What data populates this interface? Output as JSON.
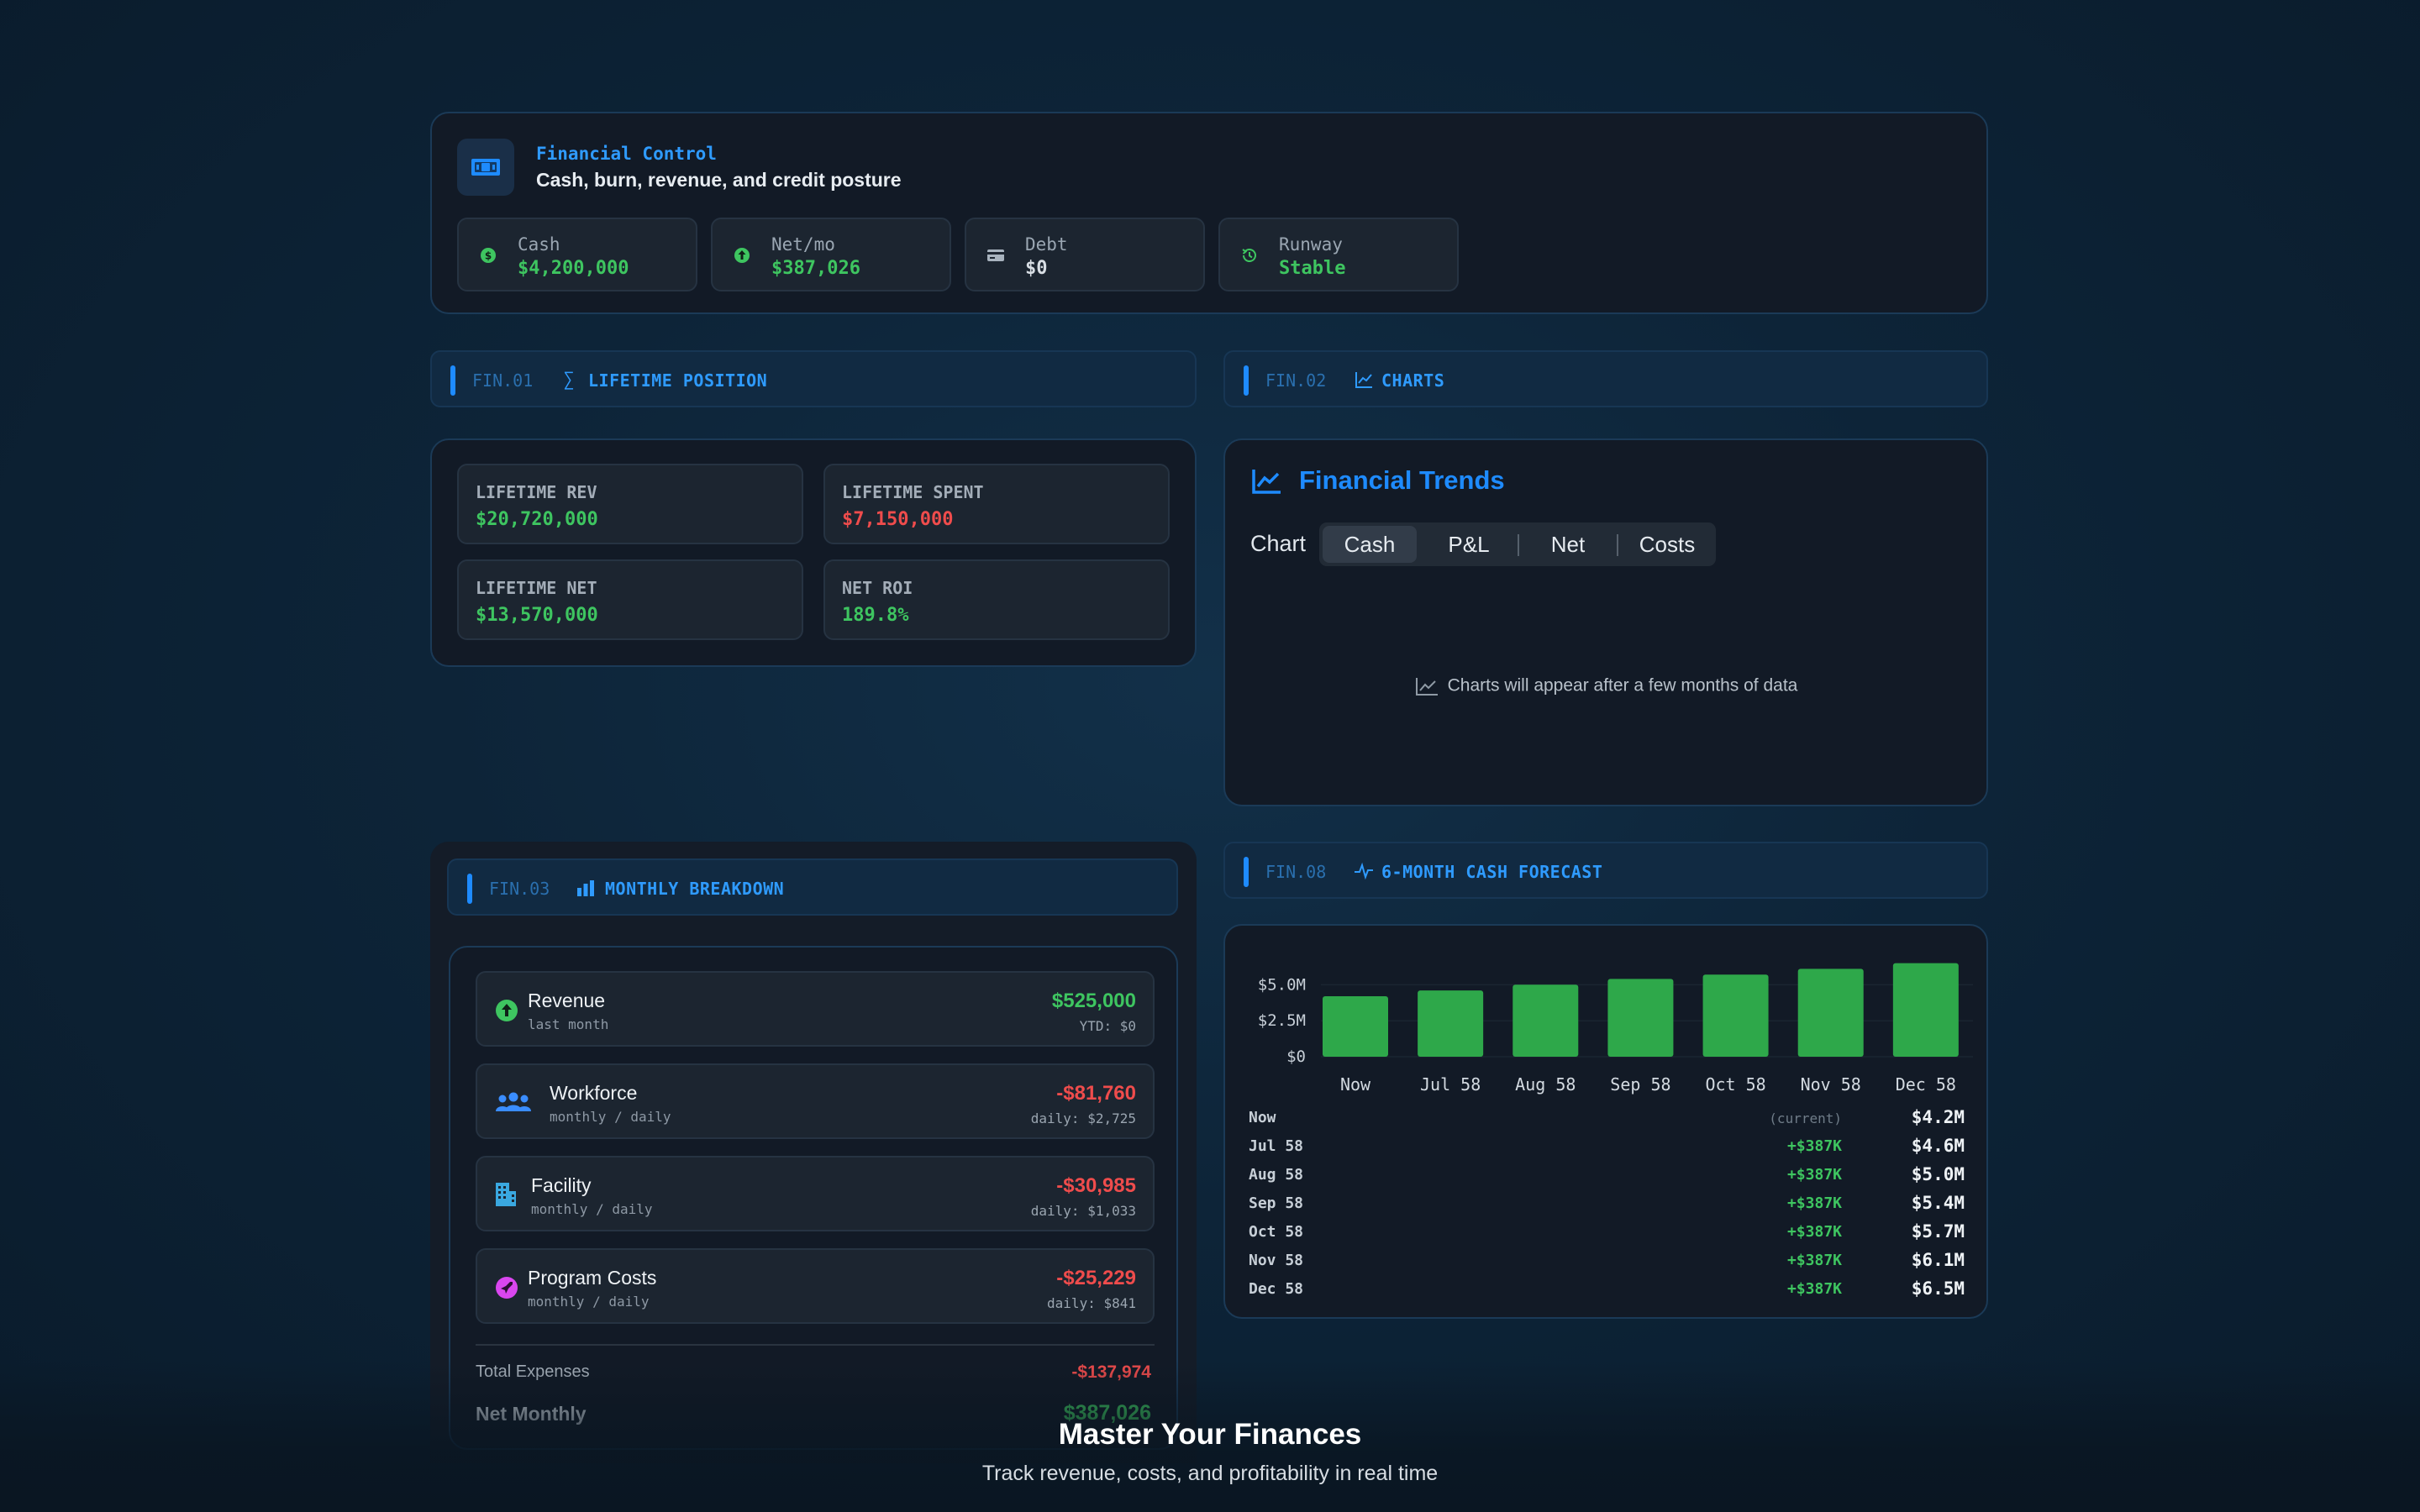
{
  "header": {
    "icon": "cash-icon",
    "kicker": "Financial Control",
    "title": "Cash, burn, revenue, and credit posture",
    "stats": [
      {
        "label": "Cash",
        "value": "$4,200,000",
        "icon": "dollar-icon",
        "color": "#3ec560"
      },
      {
        "label": "Net/mo",
        "value": "$387,026",
        "icon": "arrow-up-icon",
        "color": "#3ec560"
      },
      {
        "label": "Debt",
        "value": "$0",
        "icon": "credit-card-icon",
        "color": "#d8dee4"
      },
      {
        "label": "Runway",
        "value": "Stable",
        "icon": "history-icon",
        "color": "#3ec560"
      }
    ]
  },
  "sections": {
    "lifetime": {
      "code": "FIN.01",
      "title": "LIFETIME POSITION",
      "icon": "sigma-icon"
    },
    "charts": {
      "code": "FIN.02",
      "title": "CHARTS",
      "icon": "line-chart-icon"
    },
    "monthly": {
      "code": "FIN.03",
      "title": "MONTHLY BREAKDOWN",
      "icon": "bar-chart-icon"
    },
    "forecast": {
      "code": "FIN.08",
      "title": "6-MONTH CASH FORECAST",
      "icon": "pulse-icon"
    }
  },
  "lifetime": [
    {
      "label": "LIFETIME REV",
      "value": "$20,720,000",
      "tone": "green"
    },
    {
      "label": "LIFETIME SPENT",
      "value": "$7,150,000",
      "tone": "red"
    },
    {
      "label": "LIFETIME NET",
      "value": "$13,570,000",
      "tone": "green"
    },
    {
      "label": "NET ROI",
      "value": "189.8%",
      "tone": "green"
    }
  ],
  "charts": {
    "title": "Financial Trends",
    "chart_label": "Chart",
    "tabs": [
      "Cash",
      "P&L",
      "Net",
      "Costs"
    ],
    "active_tab": "Cash",
    "empty_message": "Charts will appear after a few months of data"
  },
  "monthly": {
    "rows": [
      {
        "name": "Revenue",
        "sub": "last month",
        "amount": "$525,000",
        "detail": "YTD: $0",
        "tone": "green",
        "icon": "arrow-up-circle-icon"
      },
      {
        "name": "Workforce",
        "sub": "monthly / daily",
        "amount": "-$81,760",
        "detail": "daily: $2,725",
        "tone": "red",
        "icon": "people-icon"
      },
      {
        "name": "Facility",
        "sub": "monthly / daily",
        "amount": "-$30,985",
        "detail": "daily: $1,033",
        "tone": "red",
        "icon": "building-icon"
      },
      {
        "name": "Program Costs",
        "sub": "monthly / daily",
        "amount": "-$25,229",
        "detail": "daily: $841",
        "tone": "red",
        "icon": "rocket-icon"
      }
    ],
    "total_label": "Total Expenses",
    "total_value": "-$137,974",
    "net_label": "Net Monthly",
    "net_value": "$387,026"
  },
  "forecast": {
    "rows": [
      {
        "month": "Now",
        "delta": "(current)",
        "value": "$4.2M"
      },
      {
        "month": "Jul 58",
        "delta": "+$387K",
        "value": "$4.6M"
      },
      {
        "month": "Aug 58",
        "delta": "+$387K",
        "value": "$5.0M"
      },
      {
        "month": "Sep 58",
        "delta": "+$387K",
        "value": "$5.4M"
      },
      {
        "month": "Oct 58",
        "delta": "+$387K",
        "value": "$5.7M"
      },
      {
        "month": "Nov 58",
        "delta": "+$387K",
        "value": "$6.1M"
      },
      {
        "month": "Dec 58",
        "delta": "+$387K",
        "value": "$6.5M"
      }
    ]
  },
  "chart_data": {
    "type": "bar",
    "categories": [
      "Now",
      "Jul 58",
      "Aug 58",
      "Sep 58",
      "Oct 58",
      "Nov 58",
      "Dec 58"
    ],
    "values": [
      4.2,
      4.6,
      5.0,
      5.4,
      5.7,
      6.1,
      6.5
    ],
    "ytick_labels": [
      "$5.0M",
      "$2.5M",
      "$0"
    ],
    "yticks": [
      5.0,
      2.5,
      0
    ],
    "ylim": [
      0,
      7.0
    ],
    "bar_color": "#2ea84a",
    "grid": true
  },
  "footer": {
    "title": "Master Your Finances",
    "subtitle": "Track revenue, costs, and profitability in real time"
  }
}
